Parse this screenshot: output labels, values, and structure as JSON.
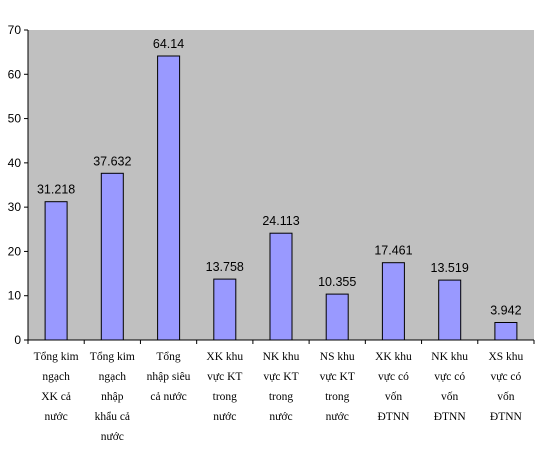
{
  "chart_data": {
    "type": "bar",
    "categories": [
      "Tổng kim ngạch XK cả nước",
      "Tổng kim ngạch nhập khẩu cả nước",
      "Tổng nhập siêu cả nước",
      "XK khu vực KT trong nước",
      "NK khu vực KT trong nước",
      "NS khu vực KT trong nước",
      "XK khu vực có vốn ĐTNN",
      "NK khu vực có vốn ĐTNN",
      "XS khu vực có vốn ĐTNN"
    ],
    "category_lines": [
      [
        "Tổng kim",
        "ngạch",
        "XK cả",
        "nước"
      ],
      [
        "Tổng kim",
        "ngạch",
        "nhập",
        "khẩu cả",
        "nước"
      ],
      [
        "Tổng",
        "nhập siêu",
        "cả nước"
      ],
      [
        "XK khu",
        "vực KT",
        "trong",
        "nước"
      ],
      [
        "NK khu",
        "vực KT",
        "trong",
        "nước"
      ],
      [
        "NS khu",
        "vực KT",
        "trong",
        "nước"
      ],
      [
        "XK khu",
        "vực có",
        "vốn",
        "ĐTNN"
      ],
      [
        "NK khu",
        "vực có",
        "vốn",
        "ĐTNN"
      ],
      [
        "XS khu",
        "vực có",
        "vốn",
        "ĐTNN"
      ]
    ],
    "values": [
      31.218,
      37.632,
      64.14,
      13.758,
      24.113,
      10.355,
      17.461,
      13.519,
      3.942
    ],
    "data_labels": [
      "31.218",
      "37.632",
      "64.14",
      "13.758",
      "24.113",
      "10.355",
      "17.461",
      "13.519",
      "3.942"
    ],
    "ylim": [
      0,
      70
    ],
    "yticks": [
      0,
      10,
      20,
      30,
      40,
      50,
      60,
      70
    ],
    "grid": false,
    "legend": "none",
    "colors": {
      "plot_bg": "#c0c0c0",
      "bar_fill": "#9999ff",
      "bar_stroke": "#000000",
      "axis": "#000000"
    }
  }
}
